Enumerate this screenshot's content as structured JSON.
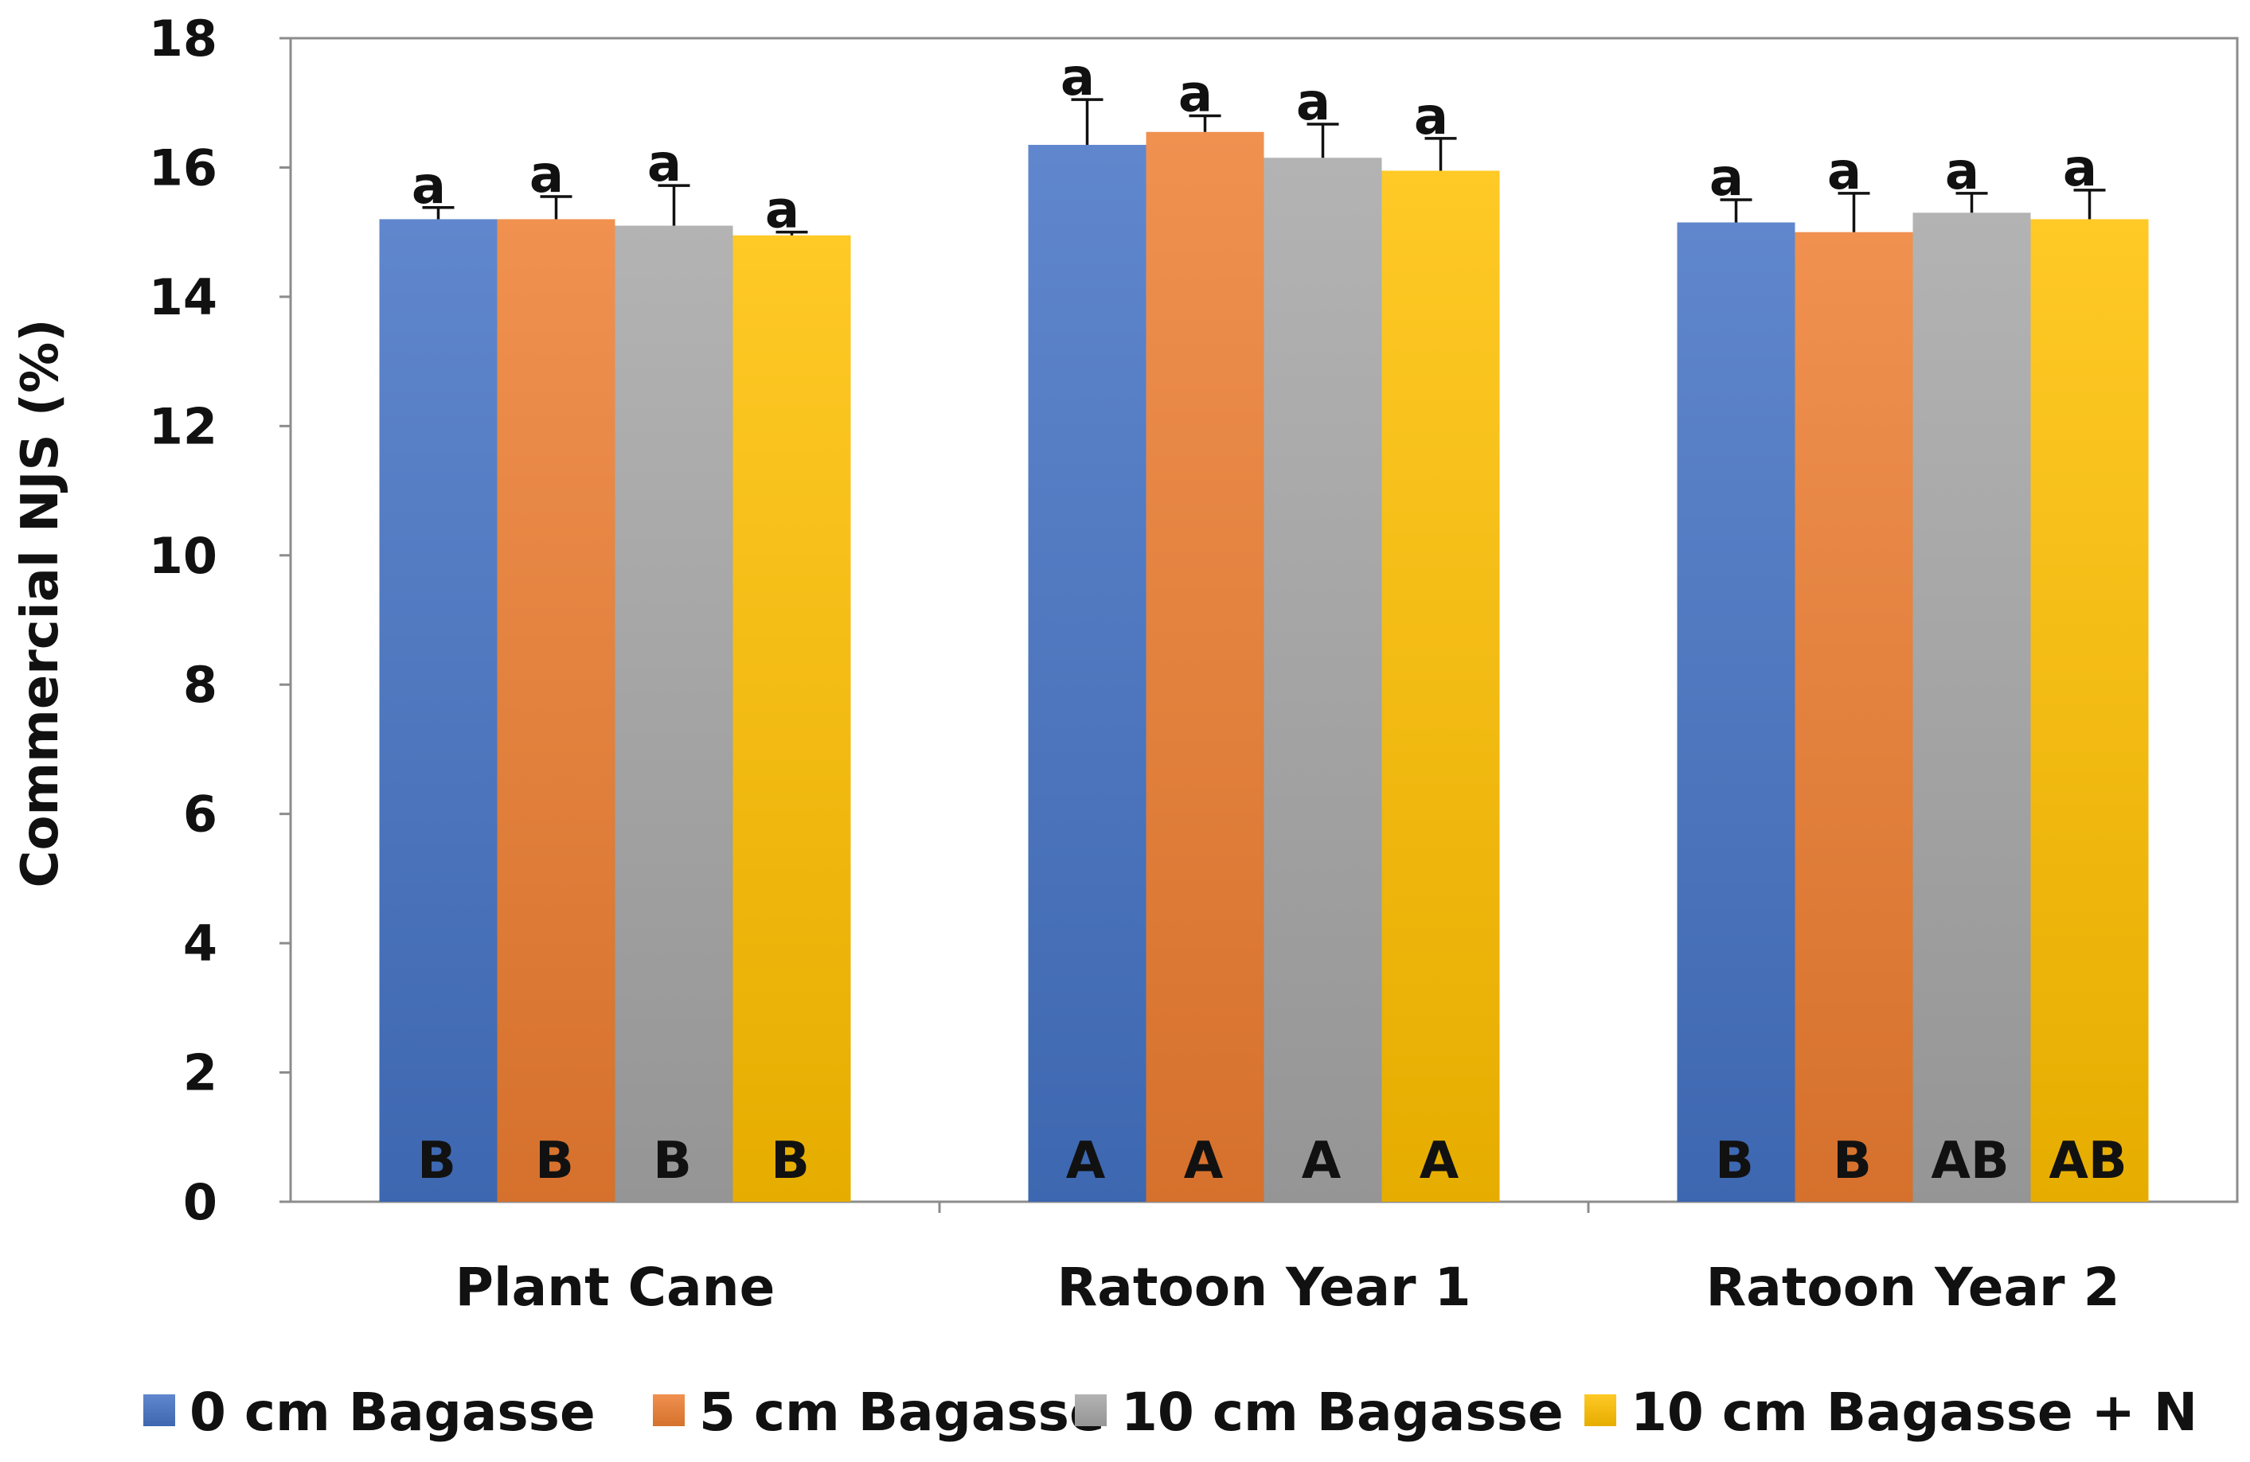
{
  "chart_data": {
    "type": "bar",
    "title": "",
    "xlabel": "",
    "ylabel": "Commercial NJS (%)",
    "ylim": [
      0,
      18
    ],
    "yticks": [
      "0",
      "2",
      "4",
      "6",
      "8",
      "10",
      "12",
      "14",
      "16",
      "18"
    ],
    "grid": false,
    "legend_position": "bottom",
    "categories": [
      "Plant Cane",
      "Ratoon Year 1",
      "Ratoon Year 2"
    ],
    "series": [
      {
        "name": "0 cm Bagasse",
        "color": "#4472C4",
        "values": [
          15.2,
          16.35,
          15.15
        ],
        "errors": [
          0.18,
          0.7,
          0.35
        ],
        "top_letters": [
          "a",
          "a",
          "a"
        ],
        "bottom_letters": [
          "B",
          "A",
          "B"
        ]
      },
      {
        "name": "5 cm Bagasse",
        "color": "#ED7D31",
        "values": [
          15.2,
          16.55,
          15.0
        ],
        "errors": [
          0.35,
          0.25,
          0.6
        ],
        "top_letters": [
          "a",
          "a",
          "a"
        ],
        "bottom_letters": [
          "B",
          "A",
          "B"
        ]
      },
      {
        "name": "10 cm Bagasse",
        "color": "#A5A5A5",
        "values": [
          15.1,
          16.15,
          15.3
        ],
        "errors": [
          0.62,
          0.52,
          0.3
        ],
        "top_letters": [
          "a",
          "a",
          "a"
        ],
        "bottom_letters": [
          "B",
          "A",
          "AB"
        ]
      },
      {
        "name": "10 cm Bagasse + N",
        "color": "#FFC000",
        "values": [
          14.95,
          15.95,
          15.2
        ],
        "errors": [
          0.05,
          0.5,
          0.45
        ],
        "top_letters": [
          "a",
          "a",
          "a"
        ],
        "bottom_letters": [
          "B",
          "A",
          "AB"
        ]
      }
    ]
  }
}
